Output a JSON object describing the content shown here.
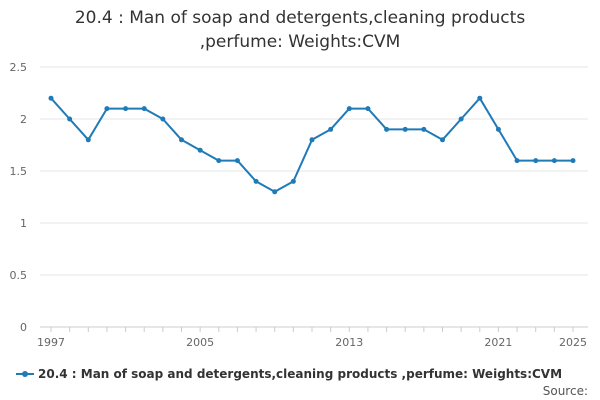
{
  "chart_data": {
    "type": "line",
    "title_lines": [
      "20.4 : Man of soap and detergents,cleaning products",
      ",perfume: Weights:CVM"
    ],
    "xlabel": "",
    "ylabel": "",
    "ylim": [
      0,
      2.5
    ],
    "yticks": [
      0,
      0.5,
      1,
      1.5,
      2,
      2.5
    ],
    "y_tick_labels": [
      "0",
      "0.5",
      "1",
      "1.5",
      "2",
      "2.5"
    ],
    "xlim": [
      1997,
      2025
    ],
    "xticks": [
      1997,
      2005,
      2013,
      2021,
      2025
    ],
    "x_tick_labels": [
      "1997",
      "2005",
      "2013",
      "2021",
      "2025"
    ],
    "grid": true,
    "legend_position": "bottom-left",
    "series": [
      {
        "name": "20.4 : Man of soap and detergents,cleaning products ,perfume: Weights:CVM",
        "color": "#1f7ab8",
        "x": [
          1997,
          1998,
          1999,
          2000,
          2001,
          2002,
          2003,
          2004,
          2005,
          2006,
          2007,
          2008,
          2009,
          2010,
          2011,
          2012,
          2013,
          2014,
          2015,
          2016,
          2017,
          2018,
          2019,
          2020,
          2021,
          2022,
          2023,
          2024,
          2025
        ],
        "values": [
          2.2,
          2.0,
          1.8,
          2.1,
          2.1,
          2.1,
          2.0,
          1.8,
          1.7,
          1.6,
          1.6,
          1.4,
          1.3,
          1.4,
          1.8,
          1.9,
          2.1,
          2.1,
          1.9,
          1.9,
          1.9,
          1.8,
          2.0,
          2.2,
          1.9,
          1.6,
          1.6,
          1.6,
          1.6
        ]
      }
    ]
  },
  "source_label": "Source:"
}
